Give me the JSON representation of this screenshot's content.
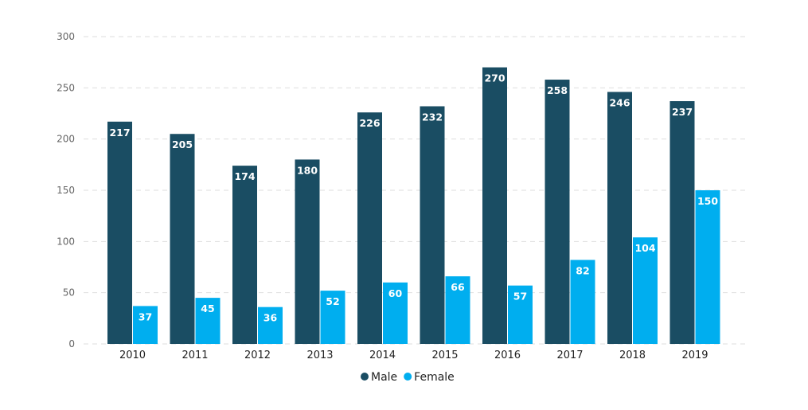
{
  "chart_data": {
    "type": "bar",
    "categories": [
      "2010",
      "2011",
      "2012",
      "2013",
      "2014",
      "2015",
      "2016",
      "2017",
      "2018",
      "2019"
    ],
    "series": [
      {
        "name": "Male",
        "color": "#1a4d63",
        "values": [
          217,
          205,
          174,
          180,
          226,
          232,
          270,
          258,
          246,
          237
        ]
      },
      {
        "name": "Female",
        "color": "#00aeef",
        "values": [
          37,
          45,
          36,
          52,
          60,
          66,
          57,
          82,
          104,
          150
        ]
      }
    ],
    "ylim": [
      0,
      300
    ],
    "yticks": [
      0,
      50,
      100,
      150,
      200,
      250,
      300
    ],
    "grid": true,
    "data_labels": true,
    "legend_position": "bottom-center"
  }
}
